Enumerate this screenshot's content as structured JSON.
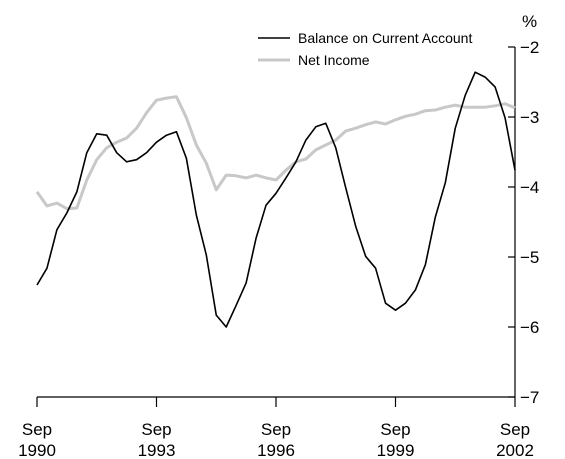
{
  "chart_data": {
    "type": "line",
    "y_label": "%",
    "x": [
      1990.75,
      1991,
      1991.25,
      1991.5,
      1991.75,
      1992,
      1992.25,
      1992.5,
      1992.75,
      1993,
      1993.25,
      1993.5,
      1993.75,
      1994,
      1994.25,
      1994.5,
      1994.75,
      1995,
      1995.25,
      1995.5,
      1995.75,
      1996,
      1996.25,
      1996.5,
      1996.75,
      1997,
      1997.25,
      1997.5,
      1997.75,
      1998,
      1998.25,
      1998.5,
      1998.75,
      1999,
      1999.25,
      1999.5,
      1999.75,
      2000,
      2000.25,
      2000.5,
      2000.75,
      2001,
      2001.25,
      2001.5,
      2001.75,
      2002,
      2002.25,
      2002.5,
      2002.75
    ],
    "series": [
      {
        "name": "Balance on Current Account",
        "color": "#000000",
        "values": [
          -5.4,
          -5.16,
          -4.61,
          -4.37,
          -4.07,
          -3.51,
          -3.24,
          -3.26,
          -3.51,
          -3.64,
          -3.61,
          -3.51,
          -3.36,
          -3.26,
          -3.21,
          -3.59,
          -4.4,
          -4.97,
          -5.83,
          -6.0,
          -5.69,
          -5.37,
          -4.73,
          -4.26,
          -4.09,
          -3.87,
          -3.64,
          -3.33,
          -3.14,
          -3.09,
          -3.44,
          -4.01,
          -4.56,
          -4.99,
          -5.16,
          -5.66,
          -5.76,
          -5.66,
          -5.47,
          -5.11,
          -4.43,
          -3.94,
          -3.16,
          -2.69,
          -2.36,
          -2.43,
          -2.57,
          -3.01,
          -3.76
        ]
      },
      {
        "name": "Net Income",
        "color": "#c8c8c8",
        "values": [
          -4.07,
          -4.27,
          -4.23,
          -4.31,
          -4.3,
          -3.9,
          -3.61,
          -3.44,
          -3.36,
          -3.3,
          -3.16,
          -2.94,
          -2.76,
          -2.73,
          -2.71,
          -3.01,
          -3.4,
          -3.66,
          -4.04,
          -3.83,
          -3.84,
          -3.87,
          -3.83,
          -3.87,
          -3.9,
          -3.76,
          -3.64,
          -3.6,
          -3.47,
          -3.4,
          -3.33,
          -3.2,
          -3.16,
          -3.11,
          -3.07,
          -3.1,
          -3.04,
          -2.99,
          -2.96,
          -2.91,
          -2.9,
          -2.86,
          -2.83,
          -2.86,
          -2.86,
          -2.86,
          -2.84,
          -2.81,
          -2.87
        ]
      }
    ],
    "xlim": [
      1990.75,
      2002.75
    ],
    "xticks": [
      {
        "value": 1990.75,
        "label": "Sep 1990"
      },
      {
        "value": 1993.75,
        "label": "Sep 1993"
      },
      {
        "value": 1996.75,
        "label": "Sep 1996"
      },
      {
        "value": 1999.75,
        "label": "Sep 1999"
      },
      {
        "value": 2002.75,
        "label": "Sep 2002"
      }
    ],
    "ylim": [
      -7,
      -2
    ],
    "yticks": [
      {
        "value": -2,
        "label": "−2"
      },
      {
        "value": -3,
        "label": "−3"
      },
      {
        "value": -4,
        "label": "−4"
      },
      {
        "value": -5,
        "label": "−5"
      },
      {
        "value": -6,
        "label": "−6"
      },
      {
        "value": -7,
        "label": "−7"
      }
    ],
    "legend": "top"
  }
}
